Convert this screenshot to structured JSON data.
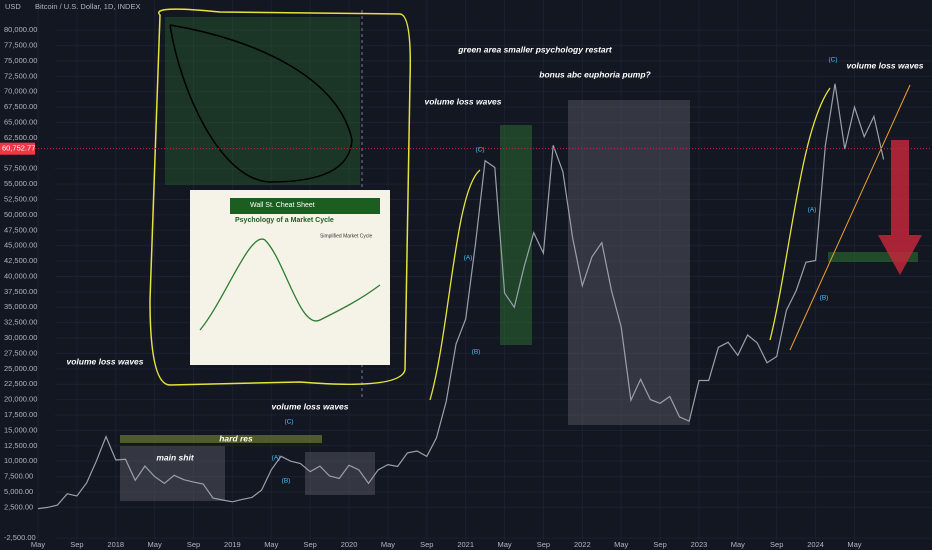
{
  "chart_data": {
    "type": "line",
    "title": "Bitcoin / U.S. Dollar, 1D, INDEX",
    "currency": "USD",
    "color": "#9aa0aa",
    "categories": [
      "May",
      null,
      null,
      null,
      "Sep",
      null,
      null,
      null,
      "2018",
      null,
      null,
      null,
      "May",
      null,
      null,
      null,
      "Sep",
      null,
      null,
      null,
      "2019",
      null,
      null,
      null,
      "May",
      null,
      null,
      null,
      "Sep",
      null,
      null,
      null,
      "2020",
      null,
      null,
      null,
      "May",
      null,
      null,
      null,
      "Sep",
      null,
      null,
      null,
      "2021",
      null,
      null,
      null,
      "May",
      null,
      null,
      null,
      "Sep",
      null,
      null,
      null,
      "2022",
      null,
      null,
      null,
      "May",
      null,
      null,
      null,
      "Sep",
      null,
      null,
      null,
      "2023",
      null,
      null,
      null,
      "May",
      null,
      null,
      null,
      "Sep",
      null,
      null,
      null,
      "2024",
      null,
      null,
      null,
      "May",
      null,
      null,
      null
    ],
    "values": [
      2300,
      2500,
      2870,
      4700,
      4340,
      6450,
      10000,
      14000,
      10200,
      10300,
      6900,
      9200,
      7500,
      6400,
      7700,
      7000,
      6600,
      6300,
      4000,
      3700,
      3400,
      3800,
      4100,
      5300,
      8600,
      10800,
      10000,
      9600,
      8300,
      9200,
      7600,
      7200,
      9350,
      8600,
      6400,
      8600,
      9450,
      9140,
      11350,
      11650,
      10780,
      13800,
      19700,
      29000,
      33100,
      45200,
      58800,
      57700,
      37300,
      35000,
      41500,
      47100,
      43800,
      61300,
      57000,
      46300,
      38500,
      43200,
      45500,
      37700,
      31800,
      19900,
      23300,
      20000,
      19400,
      20500,
      17200,
      16500,
      23100,
      23100,
      28500,
      29300,
      27200,
      30500,
      29200,
      26000,
      27000,
      34500,
      37700,
      42300,
      42600,
      61200,
      71300,
      60700,
      67500,
      62700,
      66000,
      59000
    ],
    "ylim": [
      -2800,
      84900
    ],
    "yticks": [
      {
        "value": 80000,
        "label": "80,000.00"
      },
      {
        "value": 77500,
        "label": "77,500.00"
      },
      {
        "value": 75000,
        "label": "75,000.00"
      },
      {
        "value": 72500,
        "label": "72,500.00"
      },
      {
        "value": 70000,
        "label": "70,000.00"
      },
      {
        "value": 67500,
        "label": "67,500.00"
      },
      {
        "value": 65000,
        "label": "65,000.00"
      },
      {
        "value": 62500,
        "label": "62,500.00"
      },
      {
        "value": 57500,
        "label": "57,500.00"
      },
      {
        "value": 55000,
        "label": "55,000.00"
      },
      {
        "value": 52500,
        "label": "52,500.00"
      },
      {
        "value": 50000,
        "label": "50,000.00"
      },
      {
        "value": 47500,
        "label": "47,500.00"
      },
      {
        "value": 45000,
        "label": "45,000.00"
      },
      {
        "value": 42500,
        "label": "42,500.00"
      },
      {
        "value": 40000,
        "label": "40,000.00"
      },
      {
        "value": 37500,
        "label": "37,500.00"
      },
      {
        "value": 35000,
        "label": "35,000.00"
      },
      {
        "value": 32500,
        "label": "32,500.00"
      },
      {
        "value": 30000,
        "label": "30,000.00"
      },
      {
        "value": 27500,
        "label": "27,500.00"
      },
      {
        "value": 25000,
        "label": "25,000.00"
      },
      {
        "value": 22500,
        "label": "22,500.00"
      },
      {
        "value": 20000,
        "label": "20,000.00"
      },
      {
        "value": 17500,
        "label": "17,500.00"
      },
      {
        "value": 15000,
        "label": "15,000.00"
      },
      {
        "value": 12500,
        "label": "12,500.00"
      },
      {
        "value": 10000,
        "label": "10,000.00"
      },
      {
        "value": 7500,
        "label": "7,500.00"
      },
      {
        "value": 5000,
        "label": "5,000.00"
      },
      {
        "value": 2500,
        "label": "2,500.00"
      },
      {
        "value": -2500,
        "label": "-2,500.00"
      }
    ],
    "last_price": {
      "value": 60752.77,
      "label": "60,752.77"
    },
    "annotations": [
      "volume loss waves",
      "volume loss waves",
      "volume loss waves",
      "volume loss waves",
      "green area smaller psychology restart",
      "bonus abc euphoria pump?",
      "hard res",
      "main shit",
      "(C)",
      "(A)",
      "(B)",
      "(C)",
      "(A)",
      "(B)",
      "(A)",
      "(B)",
      "(C)"
    ],
    "inset": {
      "title": "Wall St. Cheat Sheet",
      "subtitle": "Psychology of a Market Cycle",
      "caption": "Simplified Market Cycle"
    }
  }
}
